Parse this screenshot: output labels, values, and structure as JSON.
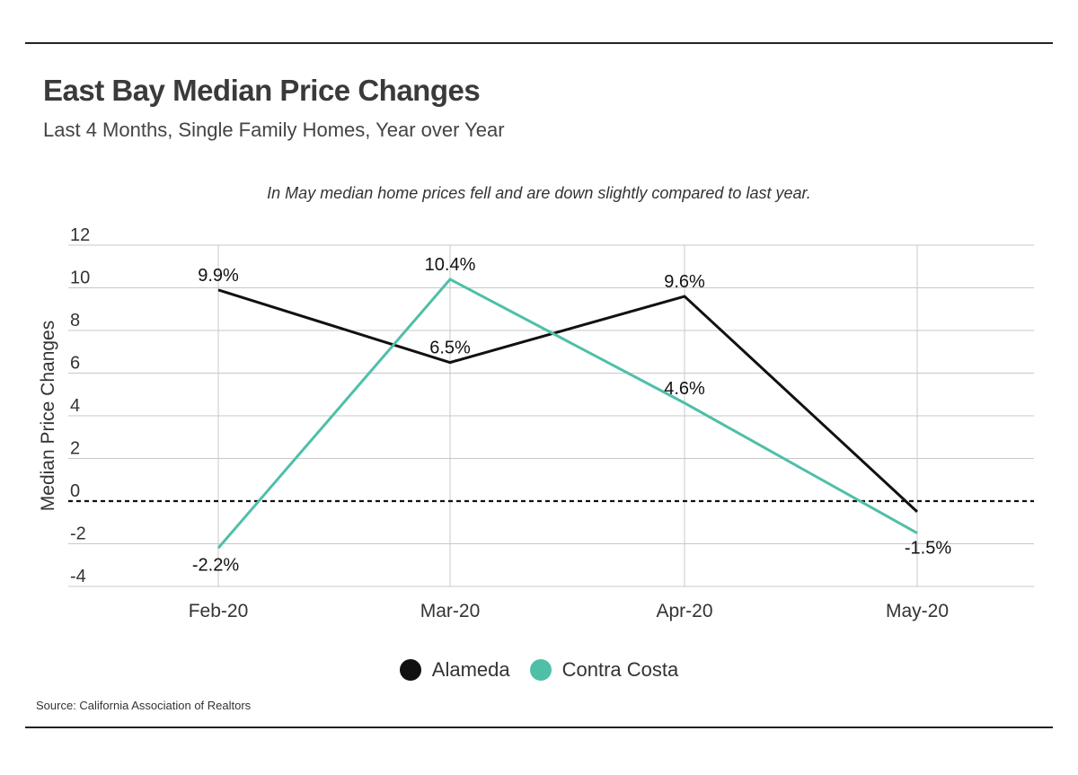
{
  "header": {
    "title": "East Bay Median Price Changes",
    "subtitle": "Last 4 Months, Single Family Homes, Year over Year"
  },
  "footer": {
    "source": "Source:  California Association of Realtors"
  },
  "colors": {
    "alameda": "#111111",
    "contra_costa": "#4fbfa8",
    "grid": "#c8c8c8",
    "zero_line": "#111111"
  },
  "chart_data": {
    "type": "line",
    "annotation": "In May median home prices fell and are down slightly compared to last year.",
    "ylabel": "Median Price Changes",
    "xlabel": "",
    "categories": [
      "Feb-20",
      "Mar-20",
      "Apr-20",
      "May-20"
    ],
    "ylim": [
      -4,
      12
    ],
    "yticks": [
      -4,
      -2,
      0,
      2,
      4,
      6,
      8,
      10,
      12
    ],
    "grid": true,
    "zero_line": "dashed",
    "legend_position": "bottom-center",
    "series": [
      {
        "name": "Alameda",
        "values": [
          9.9,
          6.5,
          9.6,
          -0.5
        ],
        "labels": [
          "9.9%",
          "6.5%",
          "9.6%",
          ""
        ]
      },
      {
        "name": "Contra Costa",
        "values": [
          -2.2,
          10.4,
          4.6,
          -1.5
        ],
        "labels": [
          "-2.2%",
          "10.4%",
          "4.6%",
          "-1.5%"
        ]
      }
    ]
  }
}
